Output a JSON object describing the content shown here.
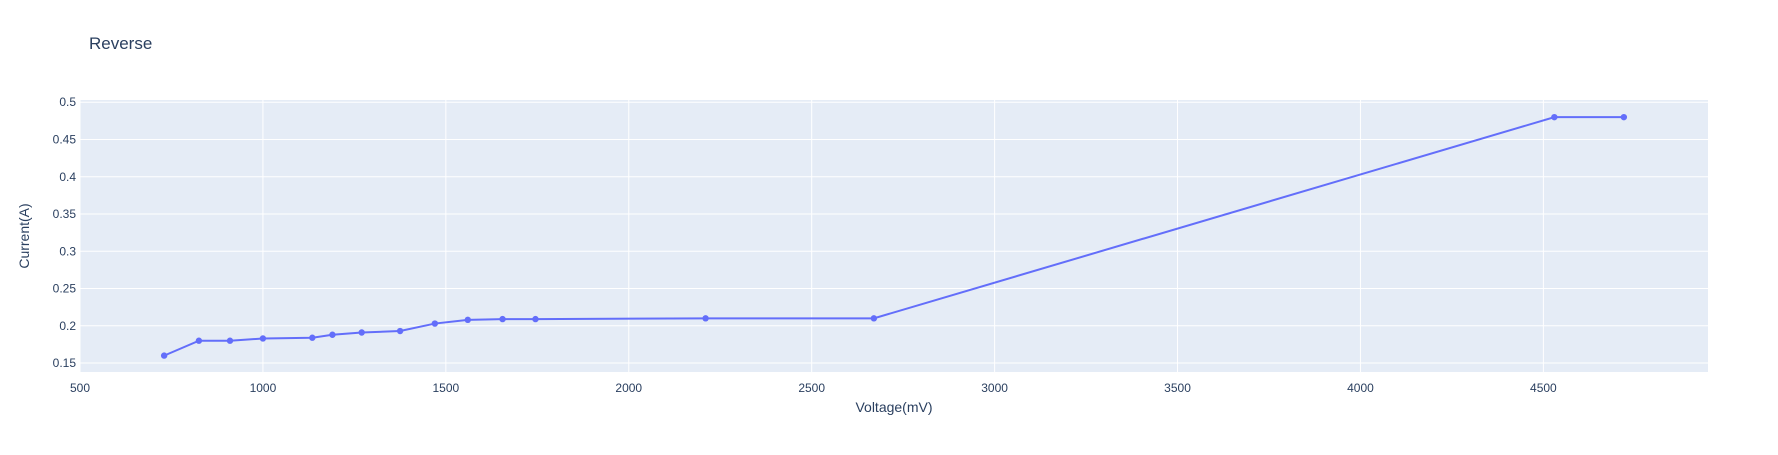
{
  "chart_data": {
    "type": "line",
    "title": "Reverse",
    "xlabel": "Voltage(mV)",
    "ylabel": "Current(A)",
    "xlim": [
      500,
      4950
    ],
    "ylim": [
      0.138,
      0.503
    ],
    "xticks": [
      500,
      1000,
      1500,
      2000,
      2500,
      3000,
      3500,
      4000,
      4500
    ],
    "yticks": [
      0.15,
      0.2,
      0.25,
      0.3,
      0.35,
      0.4,
      0.45,
      0.5
    ],
    "grid": true,
    "markers": true,
    "series": [
      {
        "x": [
          730,
          825,
          910,
          1000,
          1135,
          1190,
          1270,
          1375,
          1470,
          1560,
          1655,
          1745,
          2210,
          2670,
          4530,
          4720
        ],
        "y": [
          0.16,
          0.18,
          0.18,
          0.183,
          0.184,
          0.188,
          0.191,
          0.193,
          0.203,
          0.208,
          0.209,
          0.209,
          0.21,
          0.21,
          0.48,
          0.48
        ]
      }
    ],
    "colors": {
      "line": "#636efa",
      "plot_bg": "#e5ecf6",
      "grid": "#ffffff",
      "text": "#2a3f5f"
    }
  }
}
